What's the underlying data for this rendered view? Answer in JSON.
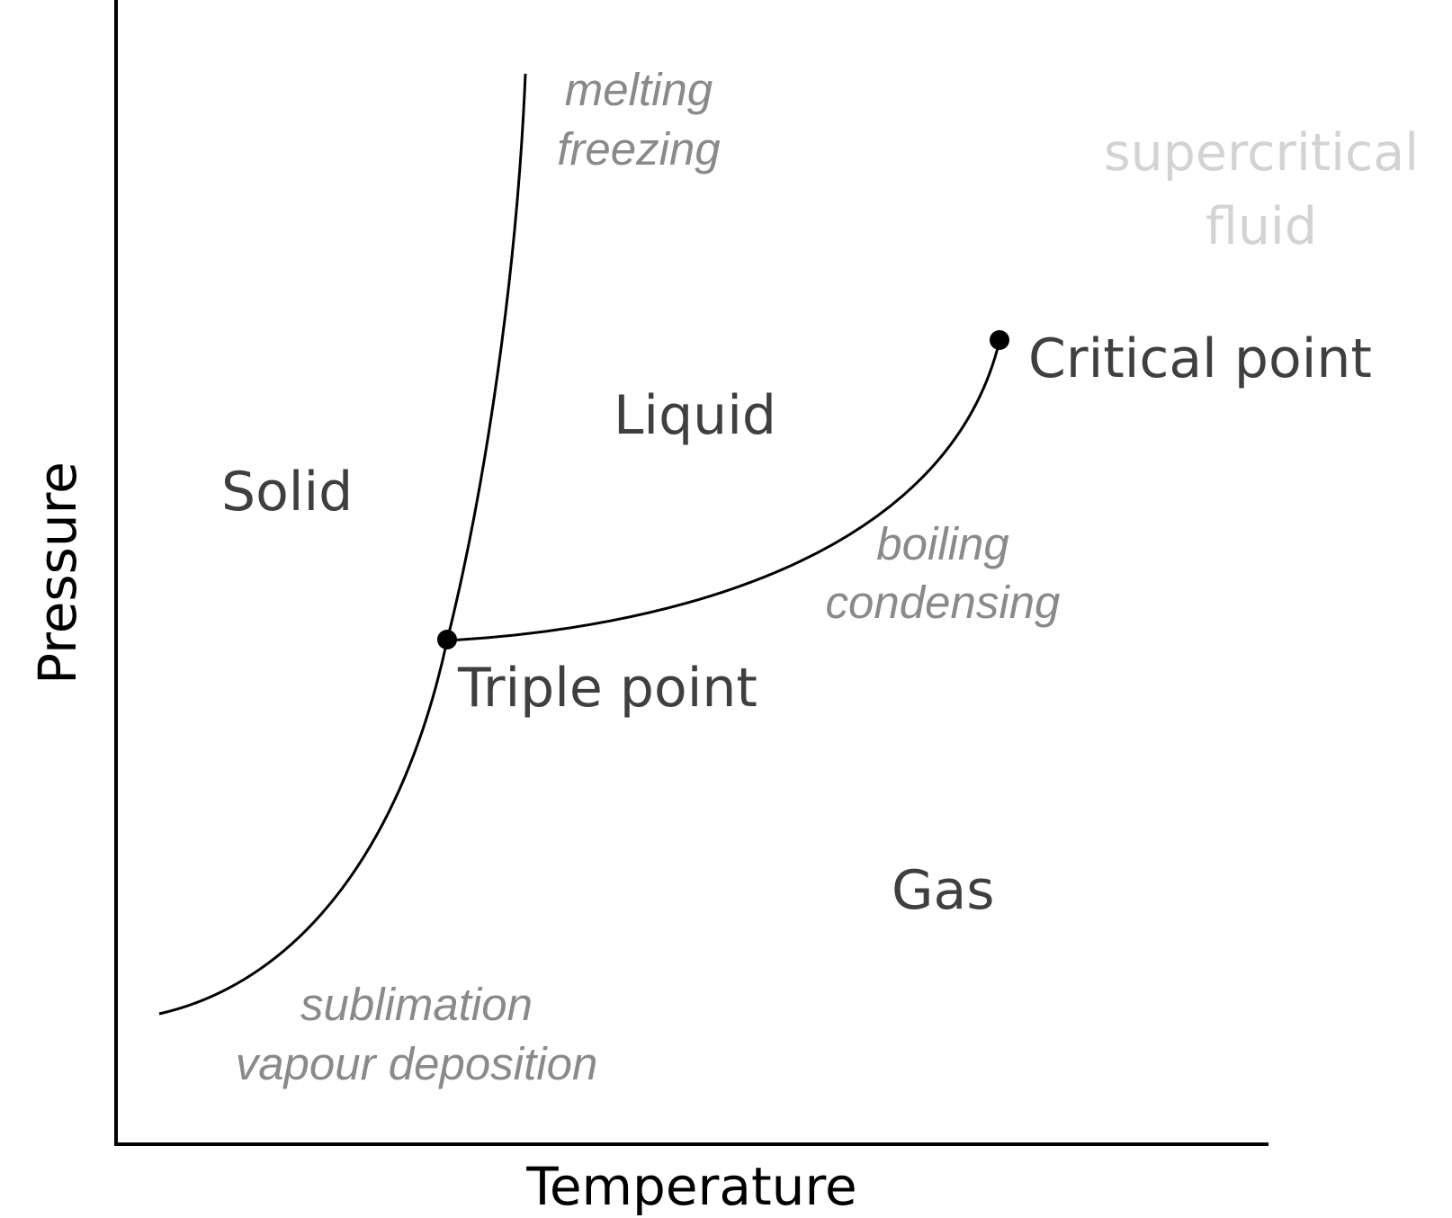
{
  "axes": {
    "x_label": "Temperature",
    "y_label": "Pressure"
  },
  "regions": {
    "solid": "Solid",
    "liquid": "Liquid",
    "gas": "Gas",
    "supercritical_line1": "supercritical",
    "supercritical_line2": "fluid"
  },
  "points": {
    "triple": "Triple point",
    "critical": "Critical point"
  },
  "transitions": {
    "melting": "melting",
    "freezing": "freezing",
    "boiling": "boiling",
    "condensing": "condensing",
    "sublimation": "sublimation",
    "deposition": "vapour deposition"
  },
  "colors": {
    "phase_text": "#3f3f3f",
    "transition_text": "#8a8a8a",
    "supercritical_text": "#d3d3d3",
    "lines": "#000000"
  }
}
